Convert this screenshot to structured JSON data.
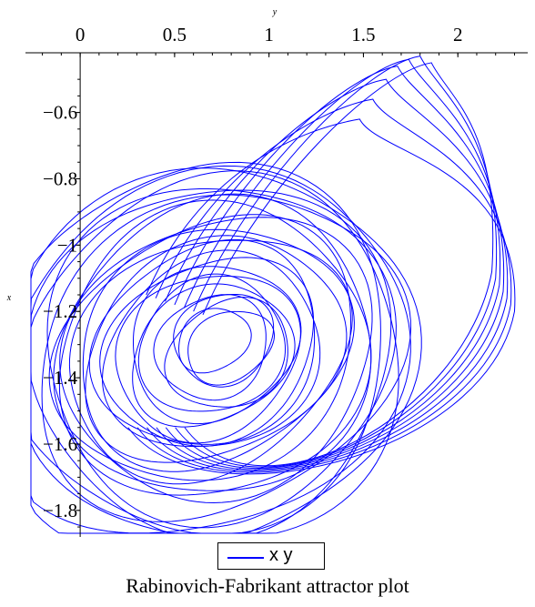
{
  "chart_data": {
    "type": "line",
    "title": "",
    "caption": "Rabinovich-Fabrikant attractor  plot",
    "xlabel": "y",
    "ylabel": "x",
    "x_axis_position": "top",
    "x_ticks": [
      0,
      0.5,
      1,
      1.5,
      2
    ],
    "x_tick_labels": [
      "0",
      "0.5",
      "1",
      "1.5",
      "2"
    ],
    "y_ticks": [
      -0.6,
      -0.8,
      -1,
      -1.2,
      -1.4,
      -1.6,
      -1.8
    ],
    "y_tick_labels": [
      "−0.6",
      "−0.8",
      "−1",
      "−1.2",
      "−1.4",
      "−1.6",
      "−1.8"
    ],
    "xlim": [
      -0.28,
      2.37
    ],
    "ylim": [
      -1.88,
      -0.42
    ],
    "grid": false,
    "legend_placement": "bottom-center",
    "series": [
      {
        "name": "x y",
        "color": "#0000ff"
      }
    ],
    "attractor": {
      "center": {
        "x": 0.75,
        "y": -1.3
      },
      "rings": 26,
      "inner_radius_x": 0.2,
      "inner_radius_y": 0.09,
      "outer_radius_x": 1.18,
      "outer_radius_y": 0.58,
      "tilt_degrees": -28,
      "lobe_peaks": [
        {
          "x": 1.48,
          "y": -0.62
        },
        {
          "x": 1.55,
          "y": -0.56
        },
        {
          "x": 1.62,
          "y": -0.5
        },
        {
          "x": 1.68,
          "y": -0.46
        },
        {
          "x": 1.74,
          "y": -0.44
        },
        {
          "x": 1.8,
          "y": -0.43
        },
        {
          "x": 1.86,
          "y": -0.45
        }
      ]
    }
  }
}
